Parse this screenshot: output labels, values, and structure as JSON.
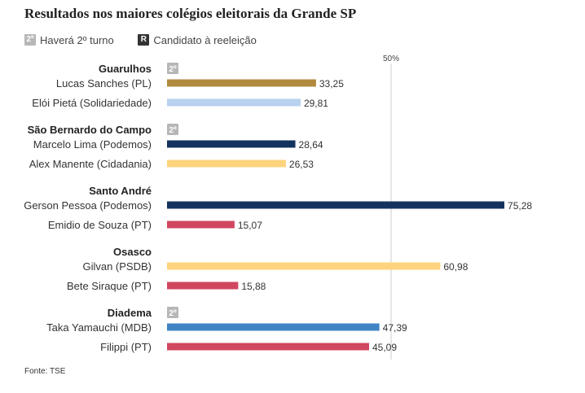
{
  "title": "Resultados nos maiores colégios eleitorais da Grande SP",
  "legend": {
    "runoff_badge": "2º",
    "runoff_label": "Haverá 2º turno",
    "reelection_badge": "R",
    "reelection_label": "Candidato à reeleição"
  },
  "source": "Fonte: TSE",
  "colors": {
    "PL": "#b18a3e",
    "Solidariedade": "#b8d1ee",
    "Podemos": "#14325e",
    "Cidadania": "#fdd37e",
    "PT": "#d0475f",
    "PSDB": "#fdd37e",
    "MDB": "#3f85c6",
    "badge_runoff": "#b7b7b7",
    "badge_reelection": "#333333",
    "reference_line": "#cccccc"
  },
  "chart_data": {
    "type": "bar",
    "orientation": "horizontal",
    "title": "Resultados nos maiores colégios eleitorais da Grande SP",
    "xlim": [
      0,
      80
    ],
    "reference_line": {
      "value": 50,
      "label": "50%"
    },
    "groups": [
      {
        "city": "Guarulhos",
        "runoff": true,
        "runoff_badge": "2º",
        "candidates": [
          {
            "label": "Lucas Sanches (PL)",
            "party": "PL",
            "value": 33.25,
            "value_label": "33,25"
          },
          {
            "label": "Elói Pietá (Solidariedade)",
            "party": "Solidariedade",
            "value": 29.81,
            "value_label": "29,81"
          }
        ]
      },
      {
        "city": "São Bernardo do Campo",
        "runoff": true,
        "runoff_badge": "2º",
        "candidates": [
          {
            "label": "Marcelo Lima (Podemos)",
            "party": "Podemos",
            "value": 28.64,
            "value_label": "28,64"
          },
          {
            "label": "Alex Manente (Cidadania)",
            "party": "Cidadania",
            "value": 26.53,
            "value_label": "26,53"
          }
        ]
      },
      {
        "city": "Santo André",
        "runoff": false,
        "candidates": [
          {
            "label": "Gerson Pessoa (Podemos)",
            "party": "Podemos",
            "value": 75.28,
            "value_label": "75,28"
          },
          {
            "label": "Emidio de Souza (PT)",
            "party": "PT",
            "value": 15.07,
            "value_label": "15,07"
          }
        ]
      },
      {
        "city": "Osasco",
        "runoff": false,
        "candidates": [
          {
            "label": "Gilvan (PSDB)",
            "party": "PSDB",
            "value": 60.98,
            "value_label": "60,98"
          },
          {
            "label": "Bete Siraque (PT)",
            "party": "PT",
            "value": 15.88,
            "value_label": "15,88"
          }
        ]
      },
      {
        "city": "Diadema",
        "runoff": true,
        "runoff_badge": "2º",
        "candidates": [
          {
            "label": "Taka Yamauchi (MDB)",
            "party": "MDB",
            "value": 47.39,
            "value_label": "47,39"
          },
          {
            "label": "Filippi (PT)",
            "party": "PT",
            "value": 45.09,
            "value_label": "45,09"
          }
        ]
      }
    ]
  }
}
